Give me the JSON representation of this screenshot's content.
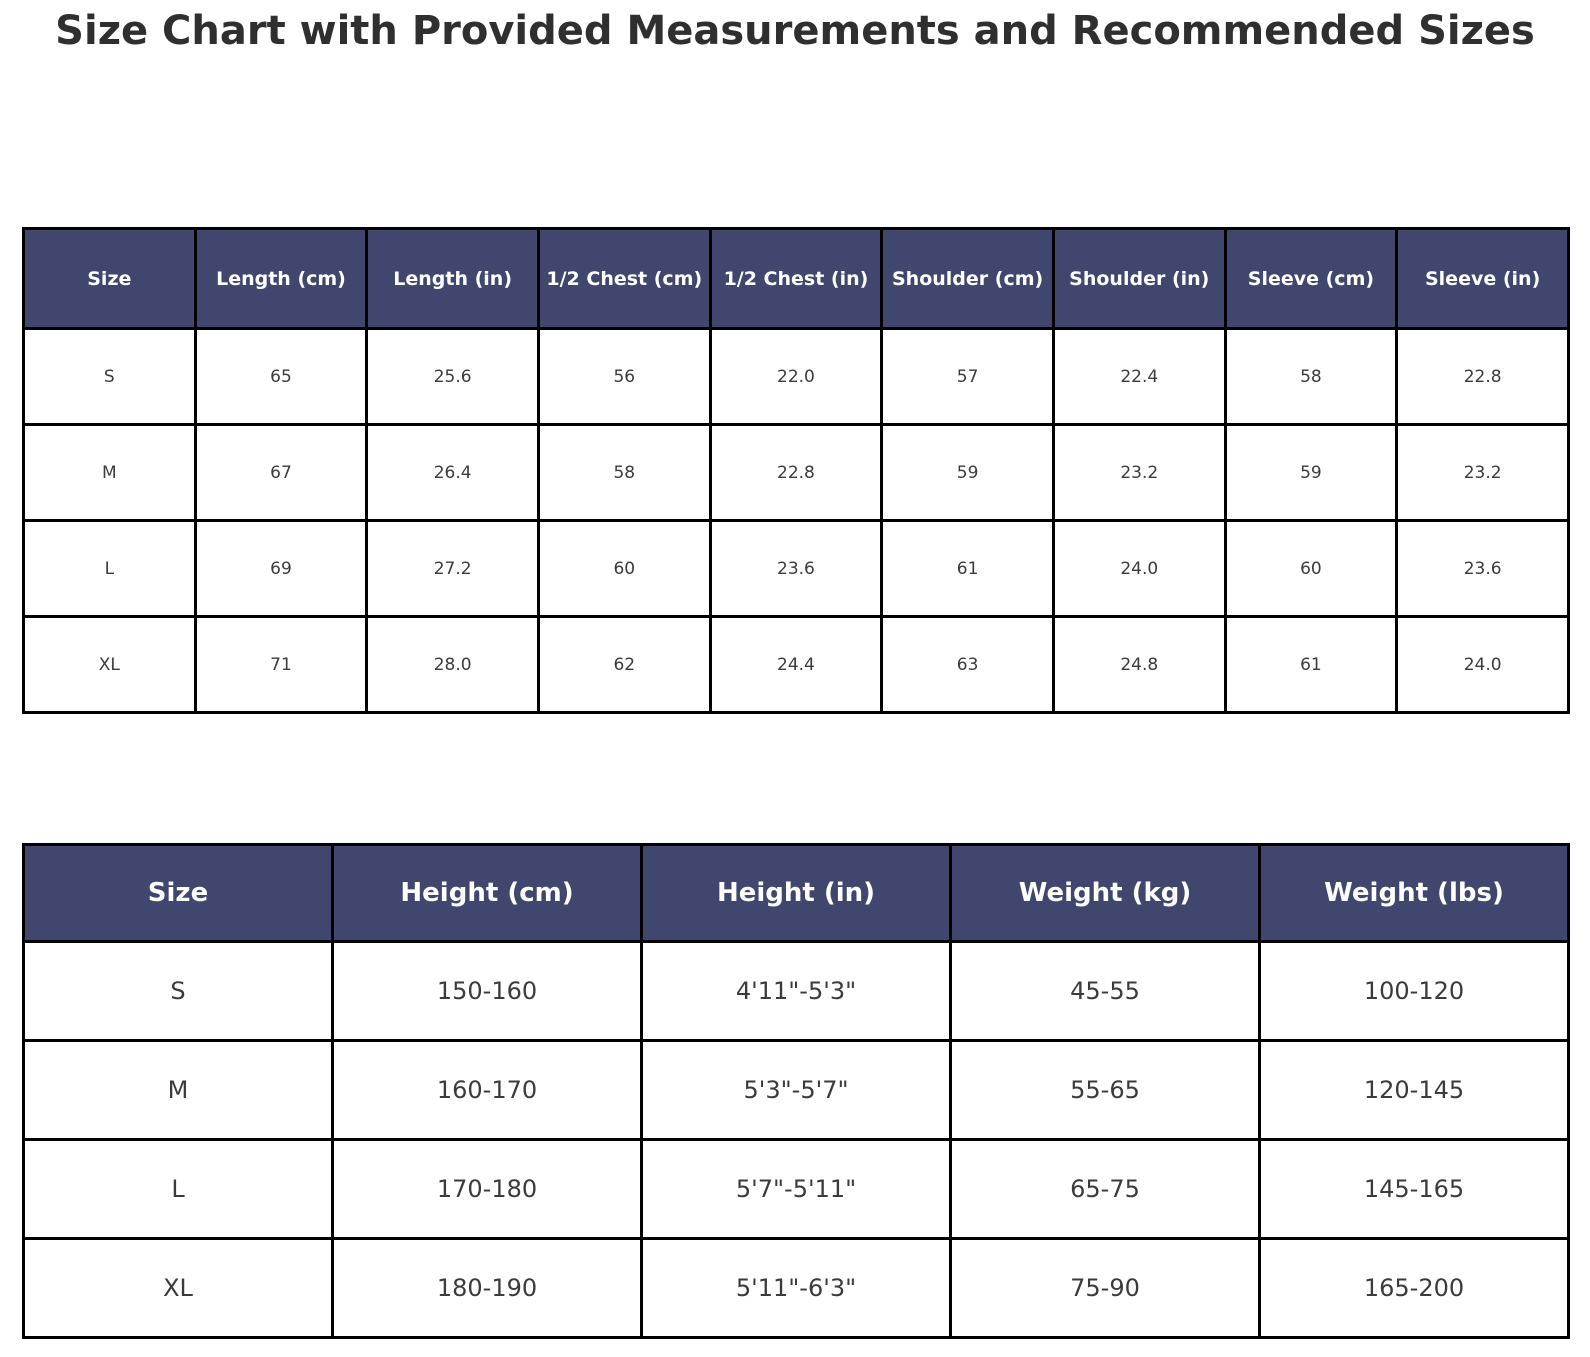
{
  "title": "Size Chart with Provided Measurements and Recommended Sizes",
  "colors": {
    "background": "#ffffff",
    "header_bg": "#40466e",
    "header_text": "#ffffff",
    "cell_text": "#3b3b3b",
    "border": "#000000",
    "title_text": "#2f2f2f"
  },
  "chart_data": [
    {
      "type": "table",
      "name": "provided-measurements",
      "headers": [
        "Size",
        "Length (cm)",
        "Length (in)",
        "1/2 Chest (cm)",
        "1/2 Chest (in)",
        "Shoulder (cm)",
        "Shoulder (in)",
        "Sleeve (cm)",
        "Sleeve (in)"
      ],
      "rows": [
        [
          "S",
          "65",
          "25.6",
          "56",
          "22.0",
          "57",
          "22.4",
          "58",
          "22.8"
        ],
        [
          "M",
          "67",
          "26.4",
          "58",
          "22.8",
          "59",
          "23.2",
          "59",
          "23.2"
        ],
        [
          "L",
          "69",
          "27.2",
          "60",
          "23.6",
          "61",
          "24.0",
          "60",
          "23.6"
        ],
        [
          "XL",
          "71",
          "28.0",
          "62",
          "24.4",
          "63",
          "24.8",
          "61",
          "24.0"
        ]
      ]
    },
    {
      "type": "table",
      "name": "recommended-sizes",
      "headers": [
        "Size",
        "Height (cm)",
        "Height (in)",
        "Weight (kg)",
        "Weight (lbs)"
      ],
      "rows": [
        [
          "S",
          "150-160",
          "4'11\"-5'3\"",
          "45-55",
          "100-120"
        ],
        [
          "M",
          "160-170",
          "5'3\"-5'7\"",
          "55-65",
          "120-145"
        ],
        [
          "L",
          "170-180",
          "5'7\"-5'11\"",
          "65-75",
          "145-165"
        ],
        [
          "XL",
          "180-190",
          "5'11\"-6'3\"",
          "75-90",
          "165-200"
        ]
      ]
    }
  ]
}
